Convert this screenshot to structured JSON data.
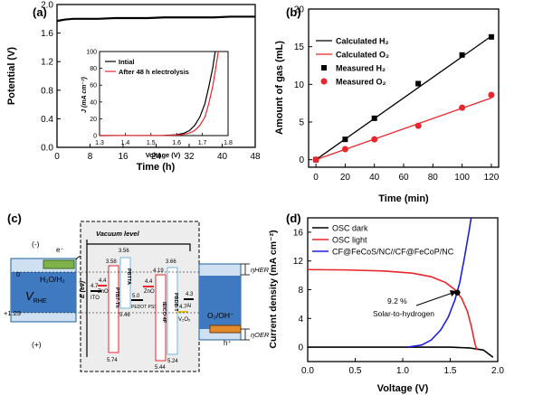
{
  "chart_data": [
    {
      "panel": "(a)",
      "type": "line",
      "xlabel": "Time (h)",
      "ylabel": "Potential (V)",
      "xlim": [
        0,
        48
      ],
      "ylim": [
        0.0,
        2.0
      ],
      "x_ticks": [
        "0",
        "8",
        "16",
        "24",
        "32",
        "40",
        "48"
      ],
      "y_ticks": [
        "0.0",
        "0.4",
        "0.8",
        "1.2",
        "1.6",
        "2.0"
      ],
      "series": [
        {
          "color": "#000000",
          "points": [
            [
              0,
              1.77
            ],
            [
              1,
              1.78
            ],
            [
              2,
              1.79
            ],
            [
              4,
              1.8
            ],
            [
              6,
              1.8
            ],
            [
              10,
              1.8
            ],
            [
              14,
              1.81
            ],
            [
              18,
              1.81
            ],
            [
              22,
              1.81
            ],
            [
              26,
              1.82
            ],
            [
              30,
              1.82
            ],
            [
              34,
              1.82
            ],
            [
              38,
              1.82
            ],
            [
              42,
              1.83
            ],
            [
              46,
              1.83
            ],
            [
              48,
              1.83
            ]
          ]
        }
      ],
      "inset": {
        "xlabel": "Voltage (V)",
        "ylabel": "J (mA cm⁻²)",
        "xlim": [
          1.3,
          1.8
        ],
        "ylim": [
          0,
          100
        ],
        "x_ticks": [
          "1.3",
          "1.4",
          "1.5",
          "1.6",
          "1.7",
          "1.8"
        ],
        "y_ticks": [
          "0",
          "20",
          "40",
          "60",
          "80",
          "100"
        ],
        "series": [
          {
            "name": "Intial",
            "color": "#000000",
            "points": [
              [
                1.3,
                0
              ],
              [
                1.55,
                0.2
              ],
              [
                1.6,
                1
              ],
              [
                1.63,
                3
              ],
              [
                1.65,
                6
              ],
              [
                1.67,
                12
              ],
              [
                1.69,
                22
              ],
              [
                1.71,
                38
              ],
              [
                1.725,
                58
              ],
              [
                1.74,
                80
              ],
              [
                1.75,
                100
              ]
            ]
          },
          {
            "name": "After 48 h electrolysis",
            "color": "#e8262b",
            "points": [
              [
                1.3,
                0
              ],
              [
                1.57,
                0.2
              ],
              [
                1.62,
                1
              ],
              [
                1.65,
                3
              ],
              [
                1.67,
                6
              ],
              [
                1.69,
                12
              ],
              [
                1.71,
                22
              ],
              [
                1.725,
                38
              ],
              [
                1.74,
                58
              ],
              [
                1.752,
                80
              ],
              [
                1.762,
                100
              ]
            ]
          }
        ]
      }
    },
    {
      "panel": "(b)",
      "type": "scatter",
      "xlabel": "Time (min)",
      "ylabel": "Amount of gas (mL)",
      "xlim": [
        -5,
        125
      ],
      "ylim": [
        -1,
        20
      ],
      "x_ticks": [
        0,
        20,
        40,
        60,
        80,
        100,
        120
      ],
      "y_ticks": [
        0,
        5,
        10,
        15,
        20
      ],
      "legend_position": "top-left",
      "series": [
        {
          "name": "Calculated H₂",
          "kind": "line",
          "color": "#000000",
          "x": [
            0,
            120
          ],
          "y": [
            0,
            16.4
          ]
        },
        {
          "name": "Calculated O₂",
          "kind": "line",
          "color": "#e8262b",
          "x": [
            0,
            120
          ],
          "y": [
            0,
            8.2
          ]
        },
        {
          "name": "Measured H₂",
          "kind": "square",
          "color": "#000000",
          "x": [
            0,
            20,
            40,
            70,
            100,
            120
          ],
          "y": [
            0,
            2.7,
            5.5,
            10.1,
            13.9,
            16.3
          ]
        },
        {
          "name": "Measured O₂",
          "kind": "circle",
          "color": "#e8262b",
          "x": [
            0,
            20,
            40,
            70,
            100,
            120
          ],
          "y": [
            0,
            1.4,
            2.7,
            4.5,
            6.9,
            8.6
          ]
        }
      ]
    },
    {
      "panel": "(c)",
      "type": "diagram",
      "vacuum_label": "Vacuum level",
      "energy_axis": "E (ev)",
      "left_axis": "V",
      "left_axis_sub": "RHE",
      "left_ticks": [
        "0",
        "+1.23"
      ],
      "sign_top": "(-)",
      "sign_bottom": "(+)",
      "electron": "e⁻",
      "hole": "h⁺",
      "h2_label": "H₂O/H₂",
      "o2_label": "O₂/OH⁻",
      "eta_her": "ηHER",
      "eta_oer": "ηOER",
      "layers": [
        {
          "name": "ITO",
          "value": "4.7"
        },
        {
          "name": "ZnO",
          "value": "4.4"
        },
        {
          "name": "PTB7-Th",
          "top": "3.58",
          "bottom": "5.74"
        },
        {
          "name": "PBTTA",
          "top": "3.56",
          "bottom": "5.46"
        },
        {
          "name": "PEDOT PSS",
          "value": "5.0"
        },
        {
          "name": "ZnO",
          "value": "4.4"
        },
        {
          "name": "IEICO-4F",
          "top": "4.19",
          "bottom": "5.44"
        },
        {
          "name": "PBDB-T",
          "top": "3.66",
          "bottom": "5.24"
        },
        {
          "name": "V₂O₅",
          "value": "4.7"
        },
        {
          "name": "Al",
          "value": "4.3"
        }
      ]
    },
    {
      "panel": "(d)",
      "type": "line",
      "xlabel": "Voltage (V)",
      "ylabel": "Current density (mA cm⁻²)",
      "xlim": [
        0.0,
        2.0
      ],
      "ylim": [
        -2,
        18
      ],
      "x_ticks": [
        "0.0",
        "0.5",
        "1.0",
        "1.5",
        "2.0"
      ],
      "y_ticks": [
        "0",
        "4",
        "8",
        "12",
        "16"
      ],
      "legend_position": "top-left",
      "annotation": [
        "9.2 %",
        "Solar-to-hydrogen"
      ],
      "series": [
        {
          "name": "OSC dark",
          "color": "#000000",
          "points": [
            [
              0,
              0
            ],
            [
              1.5,
              0
            ],
            [
              1.7,
              -0.1
            ],
            [
              1.85,
              -0.4
            ],
            [
              1.95,
              -1.4
            ]
          ]
        },
        {
          "name": "OSC light",
          "color": "#e8262b",
          "points": [
            [
              0,
              10.8
            ],
            [
              0.4,
              10.75
            ],
            [
              0.8,
              10.6
            ],
            [
              1.1,
              10.3
            ],
            [
              1.3,
              9.8
            ],
            [
              1.45,
              9.0
            ],
            [
              1.55,
              8.0
            ],
            [
              1.62,
              6.8
            ],
            [
              1.68,
              5.0
            ],
            [
              1.72,
              3.0
            ],
            [
              1.76,
              0.5
            ],
            [
              1.78,
              -0.4
            ]
          ]
        },
        {
          "name": "CF@FeCoS/NC//CF@FeCoP/NC",
          "color": "#1e1ee0",
          "points": [
            [
              1.05,
              0
            ],
            [
              1.2,
              0.3
            ],
            [
              1.3,
              1.0
            ],
            [
              1.4,
              2.4
            ],
            [
              1.48,
              4.2
            ],
            [
              1.55,
              6.6
            ],
            [
              1.6,
              9.0
            ],
            [
              1.65,
              12.5
            ],
            [
              1.7,
              16.3
            ],
            [
              1.72,
              18
            ]
          ]
        }
      ],
      "intersection": [
        1.575,
        7.6
      ]
    }
  ]
}
